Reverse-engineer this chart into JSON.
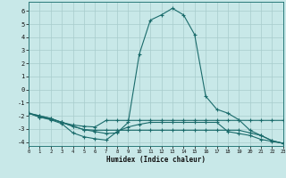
{
  "xlabel": "Humidex (Indice chaleur)",
  "bg_color": "#c8e8e8",
  "line_color": "#1a6b6b",
  "grid_color": "#a8cccc",
  "xlim": [
    0,
    23
  ],
  "ylim": [
    -4.3,
    6.7
  ],
  "xticks": [
    0,
    1,
    2,
    3,
    4,
    5,
    6,
    7,
    8,
    9,
    10,
    11,
    12,
    13,
    14,
    15,
    16,
    17,
    18,
    19,
    20,
    21,
    22,
    23
  ],
  "yticks": [
    -4,
    -3,
    -2,
    -1,
    0,
    1,
    2,
    3,
    4,
    5,
    6
  ],
  "curves": [
    [
      [
        -1.8,
        -2.1,
        -2.3,
        -2.6,
        -3.3,
        -3.6,
        -3.75,
        -3.85,
        -3.2,
        -2.85,
        -2.65,
        -2.5,
        -2.5,
        -2.5,
        -2.5,
        -2.5,
        -2.5,
        -2.5,
        -3.2,
        -3.35,
        -3.5,
        -3.8,
        -3.95,
        -4.1
      ]
    ],
    [
      [
        -1.8,
        -2.1,
        -2.25,
        -2.5,
        -2.7,
        -2.8,
        -2.85,
        -2.35,
        -2.35,
        -2.35,
        -2.35,
        -2.35,
        -2.35,
        -2.35,
        -2.35,
        -2.35,
        -2.35,
        -2.35,
        -2.35,
        -2.35,
        -2.35,
        -2.35,
        -2.35,
        -2.35
      ]
    ],
    [
      [
        -1.8,
        -2.0,
        -2.2,
        -2.5,
        -2.8,
        -3.05,
        -3.1,
        -3.1,
        -3.1,
        -3.1,
        -3.1,
        -3.1,
        -3.1,
        -3.1,
        -3.1,
        -3.1,
        -3.1,
        -3.1,
        -3.1,
        -3.1,
        -3.3,
        -3.5,
        -3.9,
        -4.1
      ]
    ],
    [
      [
        -1.8,
        -2.0,
        -2.2,
        -2.5,
        -2.8,
        -3.05,
        -3.2,
        -3.35,
        -3.3,
        -2.5,
        2.7,
        5.3,
        5.7,
        6.2,
        5.7,
        4.2,
        -0.5,
        -1.5,
        -1.8,
        -2.3,
        -3.1,
        -3.5,
        -3.9,
        -4.1
      ]
    ]
  ]
}
